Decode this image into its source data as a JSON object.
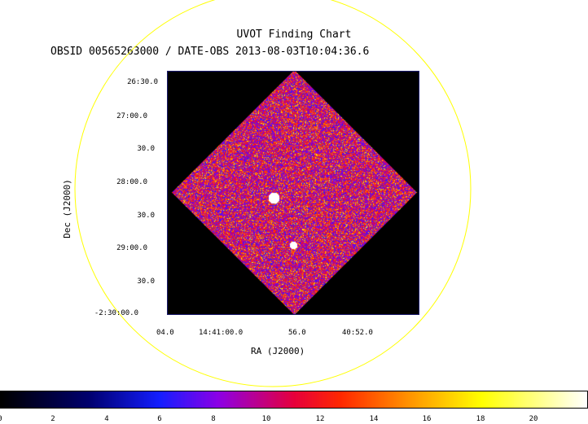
{
  "header": {
    "title": "UVOT Finding Chart",
    "subtitle": "OBSID 00565263000 / DATE-OBS 2013-08-03T10:04:36.6"
  },
  "axes": {
    "xlabel": "RA (J2000)",
    "ylabel": "Dec (J2000)",
    "xticks": [
      "04.0",
      "14:41:00.0",
      "56.0",
      "40:52.0"
    ],
    "yticks": [
      "26:30.0",
      "27:00.0",
      "30.0",
      "28:00.0",
      "30.0",
      "29:00.0",
      "30.0",
      "-2:30:00.0"
    ]
  },
  "colorbar": {
    "ticks": [
      "0",
      "2",
      "4",
      "6",
      "8",
      "10",
      "12",
      "14",
      "16",
      "18",
      "20"
    ],
    "range": [
      0,
      22
    ]
  },
  "colors": {
    "circle": "#ffff00",
    "frame_border": "#1a1a6e",
    "background": "#000000"
  }
}
